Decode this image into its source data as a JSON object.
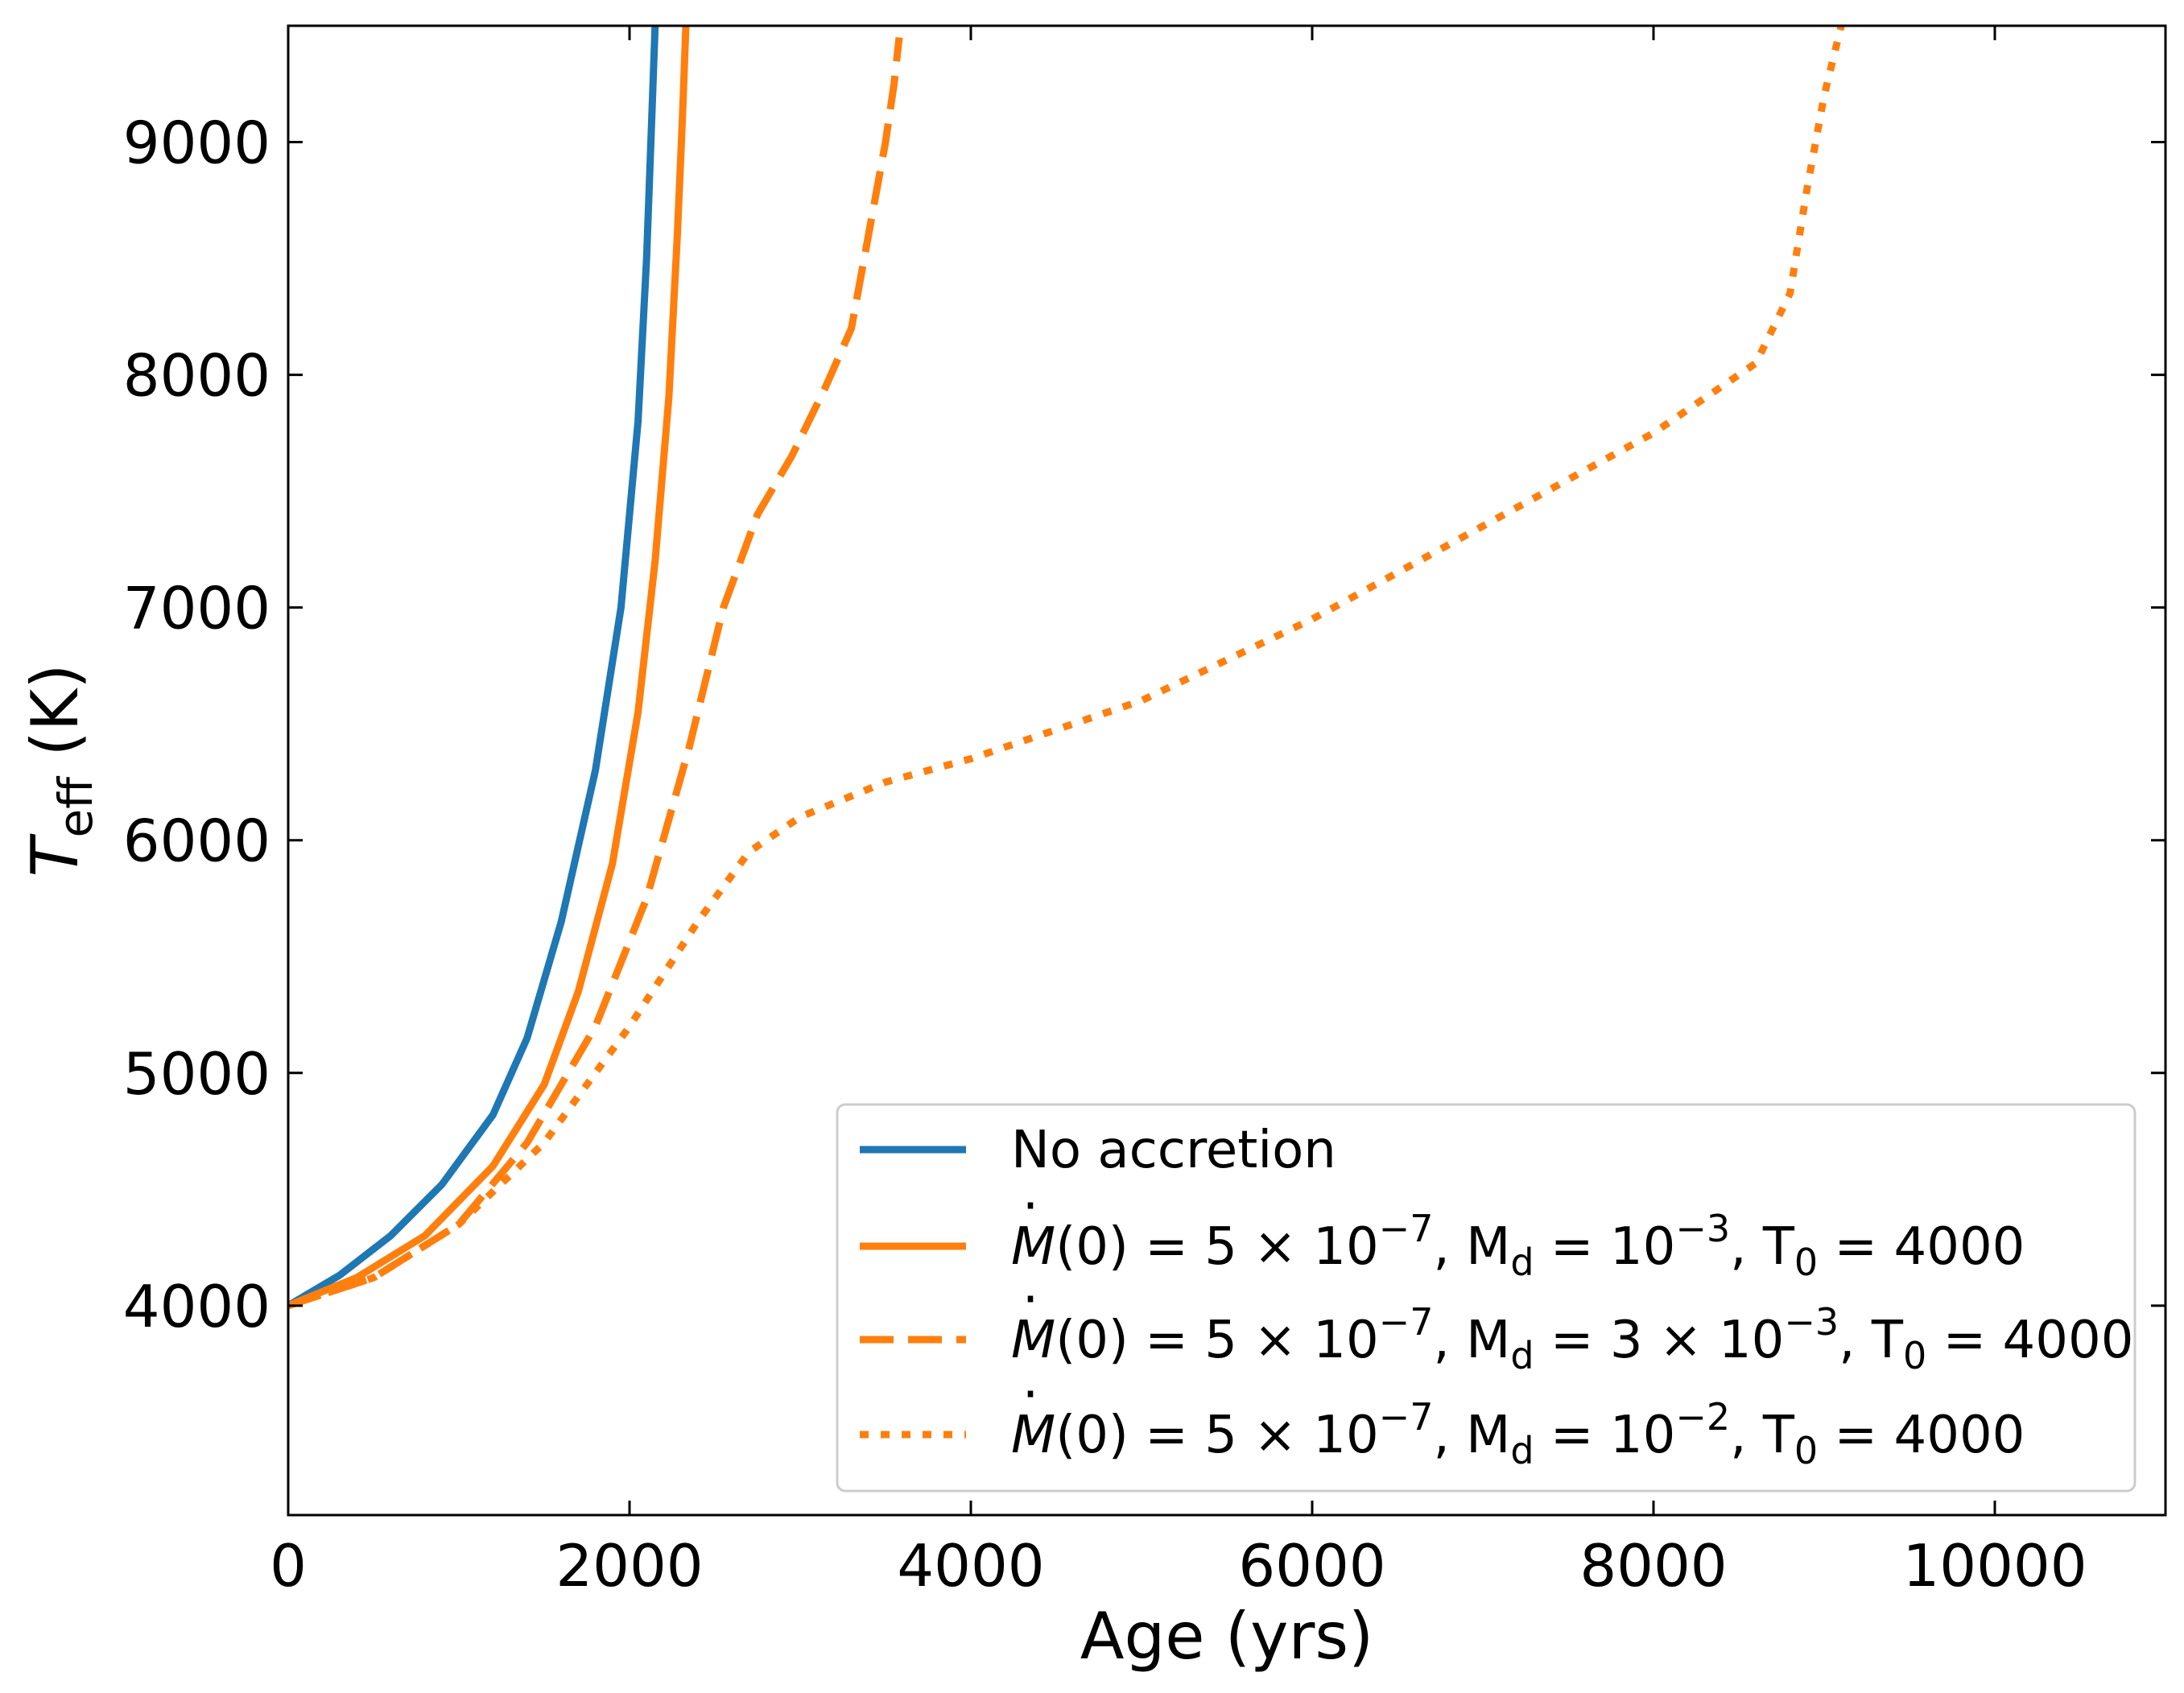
{
  "chart_data": {
    "type": "line",
    "title": "",
    "xlabel": "Age (yrs)",
    "ylabel": "T_eff (K)",
    "ylabel_main": "T",
    "ylabel_sub": "eff",
    "ylabel_unit": " (K)",
    "xlim": [
      0,
      11000
    ],
    "ylim": [
      3100,
      9500
    ],
    "xticks": [
      0,
      2000,
      4000,
      6000,
      8000,
      10000
    ],
    "yticks": [
      4000,
      5000,
      6000,
      7000,
      8000,
      9000
    ],
    "xtick_labels": [
      "0",
      "2000",
      "4000",
      "6000",
      "8000",
      "10000"
    ],
    "ytick_labels": [
      "4000",
      "5000",
      "6000",
      "7000",
      "8000",
      "9000"
    ],
    "grid": false,
    "legend_position": "lower-right",
    "series": [
      {
        "name": "No accretion",
        "label_parts": {
          "text": "No accretion"
        },
        "color": "#1f77b4",
        "style": "solid",
        "x": [
          0,
          300,
          600,
          900,
          1200,
          1400,
          1600,
          1800,
          1950,
          2050,
          2100,
          2130,
          2150
        ],
        "y": [
          4000,
          4130,
          4300,
          4520,
          4820,
          5150,
          5650,
          6300,
          7000,
          7800,
          8500,
          9100,
          9500
        ]
      },
      {
        "name": "Mdot(0)=5e-7, Md=1e-3, T0=4000",
        "label_parts": {
          "mdot": "M",
          "eq1": "(0) = 5 × 10",
          "e1": "−7",
          "md": ", M",
          "dsub": "d",
          "eq2": " = 10",
          "e2": "−3",
          "t0": ", T",
          "zsub": "0",
          "eq3": " = 4000"
        },
        "color": "#ff7f0e",
        "style": "solid",
        "x": [
          0,
          400,
          800,
          1200,
          1500,
          1700,
          1900,
          2050,
          2150,
          2230,
          2280,
          2310,
          2330
        ],
        "y": [
          4000,
          4120,
          4300,
          4600,
          4950,
          5350,
          5900,
          6550,
          7200,
          7900,
          8600,
          9100,
          9500
        ]
      },
      {
        "name": "Mdot(0)=5e-7, Md=3e-3, T0=4000",
        "label_parts": {
          "mdot": "M",
          "eq1": "(0) = 5 × 10",
          "e1": "−7",
          "md": ", M",
          "dsub": "d",
          "eq2": " = 3 × 10",
          "e2": "−3",
          "t0": ", T",
          "zsub": "0",
          "eq3": " = 4000"
        },
        "color": "#ff7f0e",
        "style": "dashed",
        "x": [
          0,
          500,
          1000,
          1400,
          1800,
          2100,
          2350,
          2550,
          2750,
          2950,
          3150,
          3300,
          3400,
          3500,
          3550,
          3580
        ],
        "y": [
          4000,
          4120,
          4350,
          4700,
          5200,
          5750,
          6400,
          7000,
          7400,
          7650,
          7950,
          8200,
          8600,
          9000,
          9250,
          9450
        ]
      },
      {
        "name": "Mdot(0)=5e-7, Md=1e-2, T0=4000",
        "label_parts": {
          "mdot": "M",
          "eq1": "(0) = 5 × 10",
          "e1": "−7",
          "md": ", M",
          "dsub": "d",
          "eq2": " = 10",
          "e2": "−2",
          "t0": ", T",
          "zsub": "0",
          "eq3": " = 4000"
        },
        "color": "#ff7f0e",
        "style": "dotted",
        "x": [
          0,
          500,
          1000,
          1500,
          2000,
          2400,
          2700,
          3000,
          3500,
          4000,
          5000,
          6000,
          7000,
          8000,
          8600,
          8800,
          8900,
          9000,
          9100
        ],
        "y": [
          4000,
          4120,
          4350,
          4700,
          5200,
          5650,
          5950,
          6100,
          6250,
          6350,
          6600,
          6950,
          7350,
          7750,
          8050,
          8350,
          8800,
          9200,
          9500
        ]
      }
    ]
  }
}
